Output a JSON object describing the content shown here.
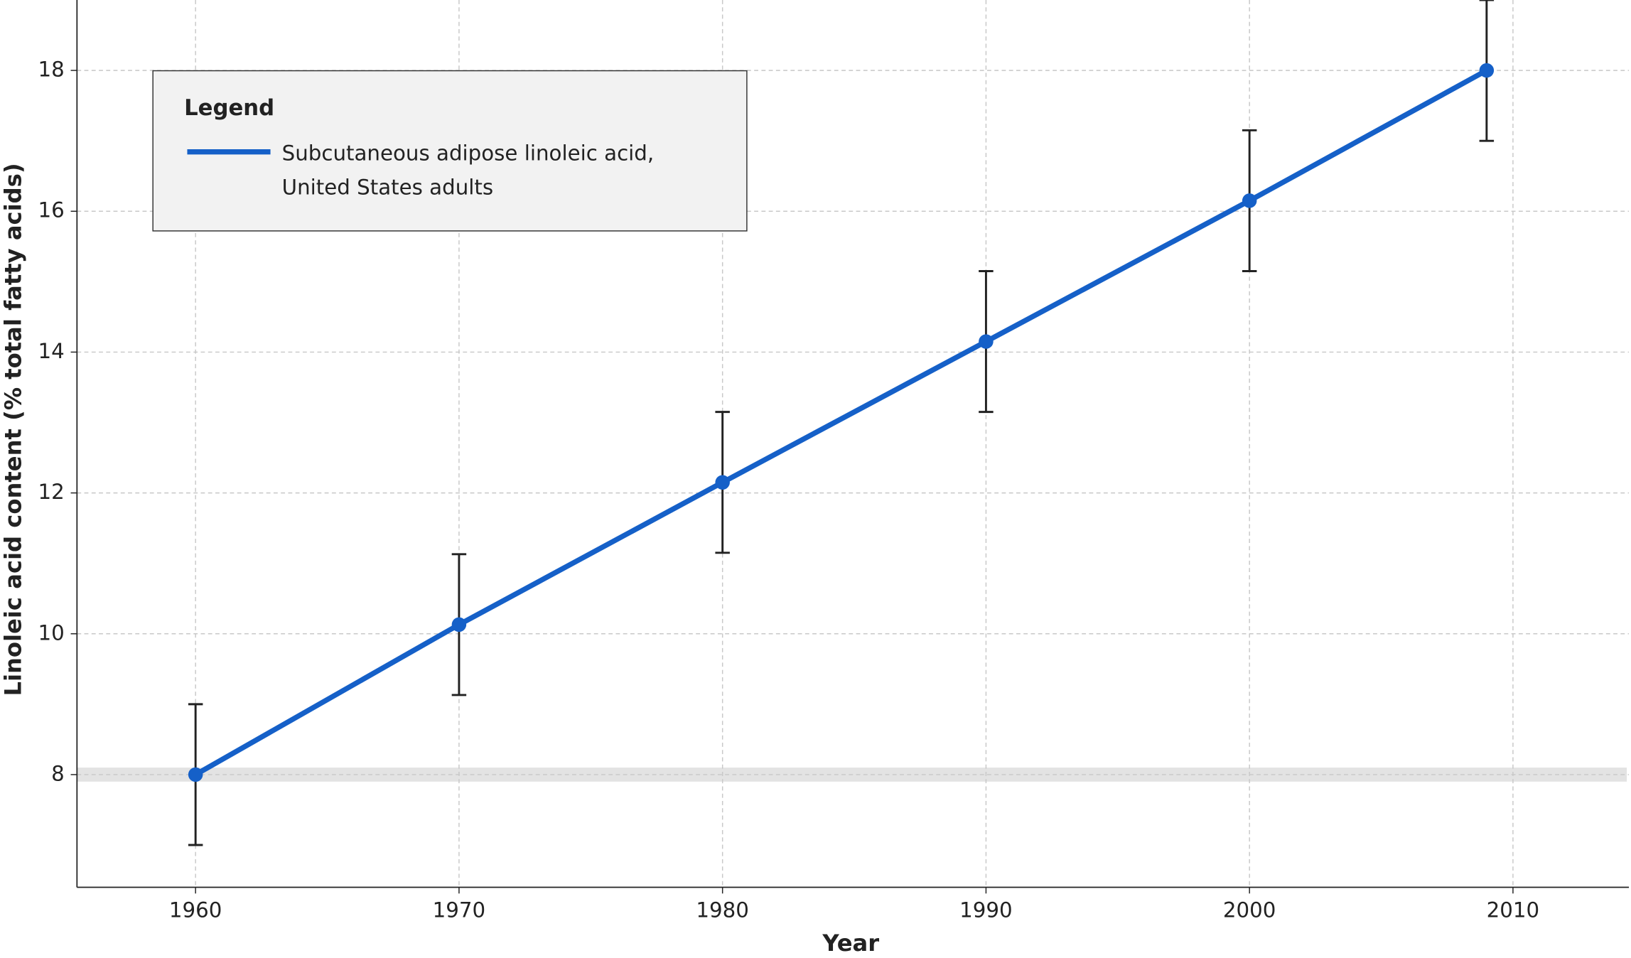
{
  "chart_data": {
    "type": "line",
    "xlabel": "Year",
    "ylabel": "Linoleic acid content (% total fatty acids)",
    "x": [
      1960,
      1970,
      1980,
      1990,
      2000,
      2009
    ],
    "series": [
      {
        "name": "Subcutaneous adipose linoleic acid,\nUnited States adults",
        "color": "#1560c8",
        "values": [
          8.0,
          10.13,
          12.15,
          14.15,
          16.15,
          18.0
        ],
        "errors": [
          1,
          1,
          1,
          1,
          1,
          1
        ]
      }
    ],
    "legend_title": "Legend",
    "legend": "upper left",
    "reference_band": [
      7.9,
      8.1
    ],
    "xlim": [
      1955.5,
      2014.4
    ],
    "xticks": [
      1960,
      1970,
      1980,
      1990,
      2000,
      2010
    ],
    "ylim": [
      6.4,
      19.0
    ],
    "yticks": [
      8,
      10,
      12,
      14,
      16,
      18
    ],
    "grid": true
  }
}
